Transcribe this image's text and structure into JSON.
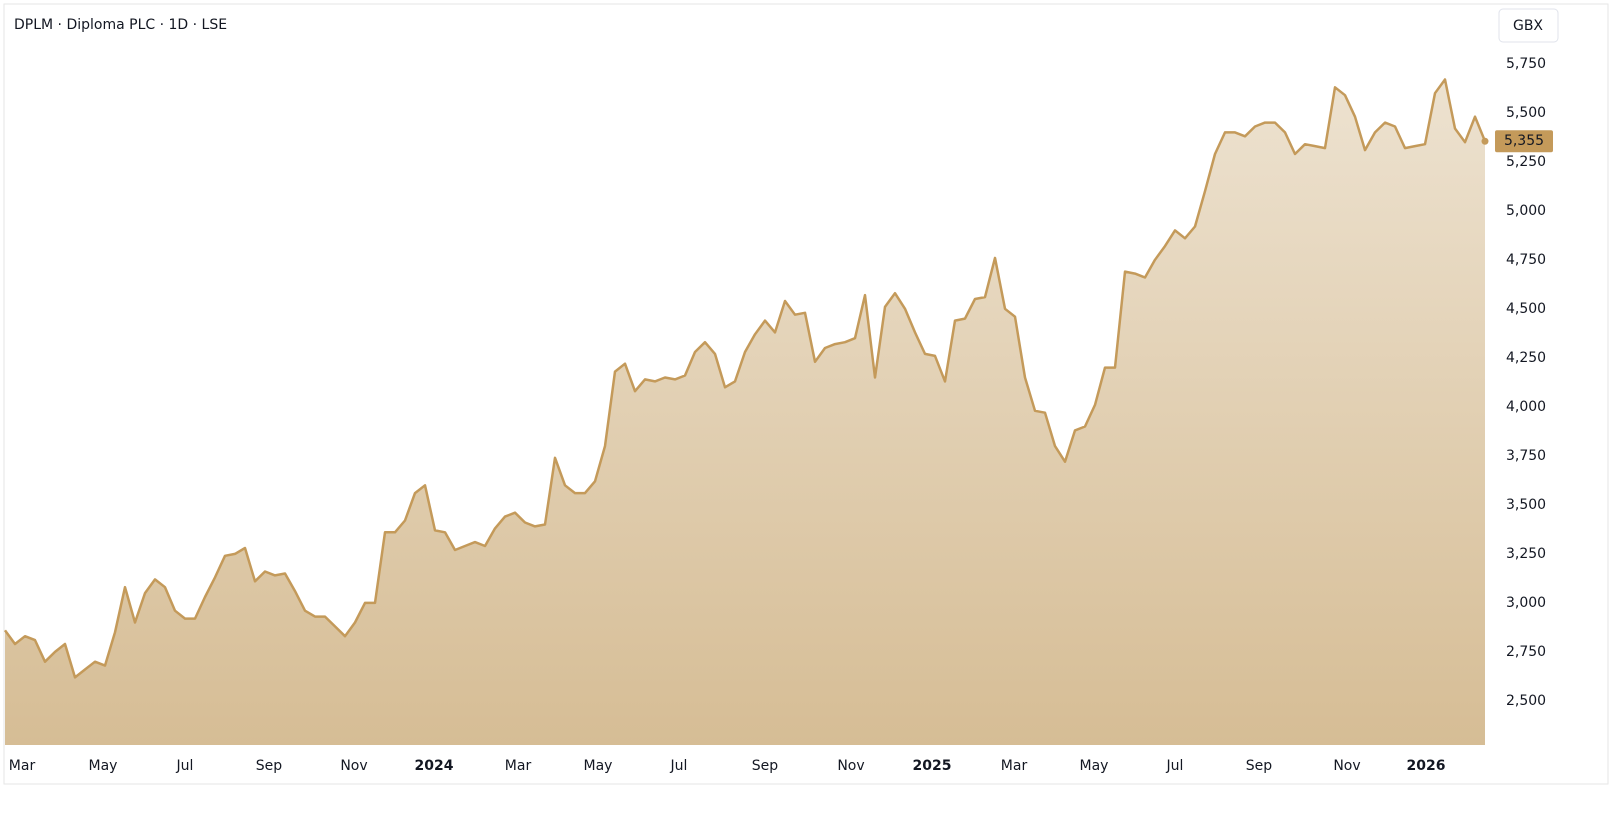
{
  "chart_data": {
    "type": "area",
    "title": "DPLM · Diploma PLC · 1D · LSE",
    "currency": "GBX",
    "color": "#c49a5a",
    "values": [
      2860,
      2790,
      2830,
      2810,
      2700,
      2750,
      2790,
      2620,
      2660,
      2700,
      2680,
      2850,
      3080,
      2900,
      3050,
      3120,
      3080,
      2960,
      2920,
      2920,
      3030,
      3130,
      3240,
      3250,
      3280,
      3110,
      3160,
      3140,
      3150,
      3060,
      2960,
      2930,
      2930,
      2880,
      2830,
      2900,
      3000,
      3000,
      3360,
      3360,
      3420,
      3560,
      3600,
      3370,
      3360,
      3270,
      3290,
      3310,
      3290,
      3380,
      3440,
      3460,
      3410,
      3390,
      3400,
      3740,
      3600,
      3560,
      3560,
      3620,
      3800,
      4180,
      4220,
      4080,
      4140,
      4130,
      4150,
      4140,
      4160,
      4280,
      4330,
      4270,
      4100,
      4130,
      4280,
      4370,
      4440,
      4380,
      4540,
      4470,
      4480,
      4230,
      4300,
      4320,
      4330,
      4350,
      4570,
      4150,
      4510,
      4580,
      4500,
      4380,
      4270,
      4260,
      4130,
      4440,
      4450,
      4550,
      4560,
      4760,
      4500,
      4460,
      4150,
      3980,
      3970,
      3800,
      3720,
      3880,
      3900,
      4010,
      4200,
      4200,
      4690,
      4680,
      4660,
      4750,
      4820,
      4900,
      4860,
      4920,
      5100,
      5290,
      5400,
      5400,
      5380,
      5430,
      5450,
      5450,
      5400,
      5290,
      5340,
      5330,
      5320,
      5630,
      5590,
      5480,
      5310,
      5400,
      5450,
      5430,
      5320,
      5330,
      5340,
      5600,
      5670,
      5420,
      5350,
      5480,
      5355
    ],
    "current_price": {
      "value": 5355,
      "label": "5,355"
    },
    "xlim": [
      0,
      148.3
    ],
    "xticks": [
      {
        "value": 1.7,
        "label": "Mar"
      },
      {
        "value": 9.8,
        "label": "May"
      },
      {
        "value": 18,
        "label": "Jul"
      },
      {
        "value": 26.4,
        "label": "Sep"
      },
      {
        "value": 34.9,
        "label": "Nov"
      },
      {
        "value": 42.9,
        "label": "2024"
      },
      {
        "value": 51.3,
        "label": "Mar"
      },
      {
        "value": 59.3,
        "label": "May"
      },
      {
        "value": 67.4,
        "label": "Jul"
      },
      {
        "value": 76,
        "label": "Sep"
      },
      {
        "value": 84.6,
        "label": "Nov"
      },
      {
        "value": 92.7,
        "label": "2025"
      },
      {
        "value": 100.9,
        "label": "Mar"
      },
      {
        "value": 108.9,
        "label": "May"
      },
      {
        "value": 117,
        "label": "Jul"
      },
      {
        "value": 125.4,
        "label": "Sep"
      },
      {
        "value": 134.2,
        "label": "Nov"
      },
      {
        "value": 142.1,
        "label": "2026"
      }
    ],
    "ylim": [
      2275,
      6050
    ],
    "yticks": [
      {
        "value": 2500,
        "label": "2,500"
      },
      {
        "value": 2750,
        "label": "2,750"
      },
      {
        "value": 3000,
        "label": "3,000"
      },
      {
        "value": 3250,
        "label": "3,250"
      },
      {
        "value": 3500,
        "label": "3,500"
      },
      {
        "value": 3750,
        "label": "3,750"
      },
      {
        "value": 4000,
        "label": "4,000"
      },
      {
        "value": 4250,
        "label": "4,250"
      },
      {
        "value": 4500,
        "label": "4,500"
      },
      {
        "value": 4750,
        "label": "4,750"
      },
      {
        "value": 5000,
        "label": "5,000"
      },
      {
        "value": 5250,
        "label": "5,250"
      },
      {
        "value": 5500,
        "label": "5,500"
      },
      {
        "value": 5750,
        "label": "5,750"
      }
    ]
  }
}
